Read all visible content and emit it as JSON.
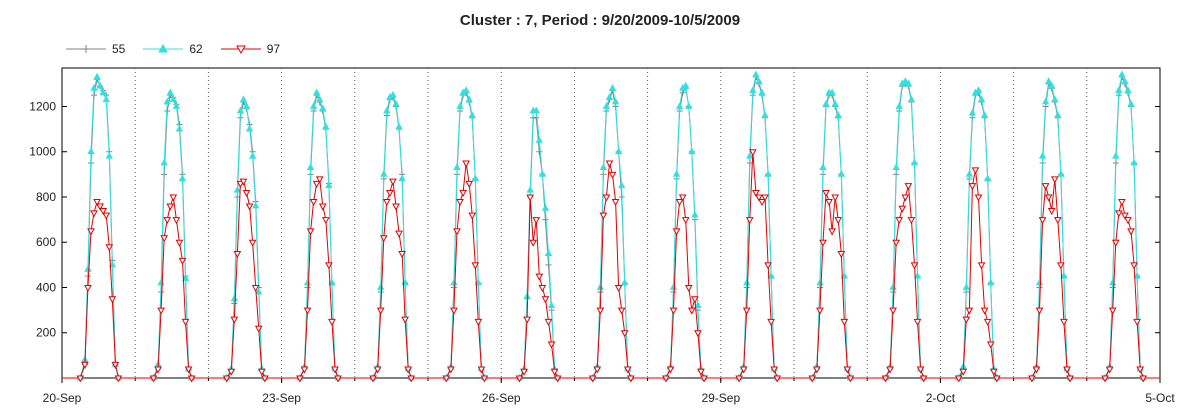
{
  "chart_data": {
    "type": "line",
    "title": "Cluster : 7, Period : 9/20/2009-10/5/2009",
    "x_tick_labels": [
      "20-Sep",
      "23-Sep",
      "26-Sep",
      "29-Sep",
      "2-Oct",
      "5-Oct"
    ],
    "y_tick_labels": [
      "200",
      "400",
      "600",
      "800",
      "1000",
      "1200"
    ],
    "ylim": [
      0,
      1370
    ],
    "x_day_range": [
      0,
      15
    ],
    "grid": "dotted vertical lines at day boundaries",
    "legend_placement": "top-left",
    "series_shape": "daily bell curve starting at about 7:00, peaking near noon, ending about 19:00; values sampled at 7.5, 8.5, 9.5, 10.5, 11.5, 12.5, 13.5, 14.5, 15.5, 16.5, 17.5 hours",
    "series": [
      {
        "name": "55",
        "color": "#808080",
        "marker": "plus",
        "daily_hourly_values": [
          [
            60,
            450,
            950,
            1250,
            1320,
            1290,
            1270,
            1250,
            1000,
            520,
            60
          ],
          [
            40,
            380,
            900,
            1180,
            1250,
            1240,
            1210,
            1120,
            900,
            450,
            40
          ],
          [
            30,
            330,
            800,
            1150,
            1220,
            1190,
            1120,
            1000,
            780,
            400,
            40
          ],
          [
            40,
            400,
            900,
            1180,
            1250,
            1220,
            1180,
            1100,
            860,
            420,
            40
          ],
          [
            40,
            380,
            880,
            1160,
            1230,
            1240,
            1200,
            1100,
            900,
            420,
            40
          ],
          [
            40,
            400,
            900,
            1180,
            1250,
            1260,
            1220,
            1150,
            880,
            420,
            40
          ],
          [
            30,
            350,
            800,
            1150,
            1150,
            1000,
            900,
            700,
            500,
            300,
            40
          ],
          [
            40,
            380,
            900,
            1180,
            1230,
            1270,
            1200,
            1000,
            800,
            420,
            40
          ],
          [
            40,
            380,
            880,
            1180,
            1260,
            1280,
            1200,
            1000,
            700,
            300,
            40
          ],
          [
            40,
            400,
            950,
            1250,
            1330,
            1300,
            1250,
            1150,
            900,
            450,
            40
          ],
          [
            40,
            400,
            900,
            1200,
            1250,
            1250,
            1200,
            1150,
            900,
            450,
            40
          ],
          [
            40,
            380,
            900,
            1180,
            1290,
            1300,
            1290,
            1220,
            950,
            450,
            40
          ],
          [
            40,
            380,
            880,
            1150,
            1250,
            1260,
            1220,
            1150,
            880,
            420,
            40
          ],
          [
            40,
            400,
            950,
            1200,
            1300,
            1280,
            1220,
            1150,
            900,
            450,
            40
          ],
          [
            40,
            400,
            950,
            1250,
            1330,
            1300,
            1260,
            1200,
            950,
            450,
            40
          ]
        ]
      },
      {
        "name": "62",
        "color": "#33e0e0",
        "marker": "triangle-up",
        "daily_hourly_values": [
          [
            80,
            480,
            1000,
            1280,
            1330,
            1290,
            1260,
            1230,
            980,
            500,
            60
          ],
          [
            60,
            420,
            950,
            1220,
            1260,
            1230,
            1200,
            1100,
            880,
            440,
            40
          ],
          [
            40,
            350,
            830,
            1180,
            1230,
            1200,
            1100,
            980,
            760,
            380,
            40
          ],
          [
            50,
            420,
            930,
            1200,
            1260,
            1230,
            1190,
            1110,
            850,
            420,
            40
          ],
          [
            50,
            400,
            900,
            1180,
            1240,
            1250,
            1210,
            1110,
            880,
            420,
            40
          ],
          [
            50,
            420,
            930,
            1200,
            1260,
            1270,
            1230,
            1160,
            880,
            420,
            40
          ],
          [
            40,
            360,
            830,
            1180,
            1180,
            1050,
            900,
            750,
            550,
            320,
            40
          ],
          [
            50,
            400,
            930,
            1200,
            1240,
            1280,
            1220,
            1000,
            850,
            420,
            40
          ],
          [
            50,
            400,
            900,
            1200,
            1280,
            1290,
            1200,
            1000,
            720,
            320,
            40
          ],
          [
            50,
            420,
            980,
            1270,
            1340,
            1310,
            1260,
            1160,
            900,
            450,
            40
          ],
          [
            50,
            420,
            930,
            1210,
            1260,
            1260,
            1210,
            1160,
            900,
            450,
            40
          ],
          [
            50,
            400,
            930,
            1200,
            1300,
            1310,
            1300,
            1230,
            950,
            450,
            40
          ],
          [
            50,
            400,
            900,
            1170,
            1260,
            1270,
            1230,
            1160,
            880,
            420,
            40
          ],
          [
            50,
            420,
            980,
            1220,
            1310,
            1290,
            1230,
            1160,
            900,
            450,
            40
          ],
          [
            50,
            420,
            980,
            1270,
            1340,
            1310,
            1270,
            1210,
            950,
            450,
            40
          ]
        ]
      },
      {
        "name": "97",
        "color": "#e00000",
        "marker": "triangle-down",
        "daily_hourly_values": [
          [
            60,
            400,
            650,
            730,
            780,
            760,
            740,
            720,
            580,
            350,
            60
          ],
          [
            40,
            300,
            620,
            700,
            760,
            800,
            700,
            600,
            520,
            250,
            40
          ],
          [
            30,
            260,
            550,
            860,
            870,
            820,
            760,
            600,
            400,
            220,
            30
          ],
          [
            40,
            300,
            650,
            780,
            860,
            880,
            760,
            700,
            500,
            250,
            40
          ],
          [
            40,
            300,
            620,
            780,
            820,
            870,
            760,
            640,
            550,
            260,
            40
          ],
          [
            40,
            300,
            650,
            780,
            820,
            950,
            860,
            720,
            500,
            250,
            40
          ],
          [
            30,
            260,
            800,
            600,
            700,
            450,
            400,
            350,
            250,
            150,
            30
          ],
          [
            40,
            300,
            720,
            800,
            950,
            900,
            780,
            400,
            300,
            200,
            40
          ],
          [
            40,
            300,
            650,
            780,
            800,
            700,
            400,
            300,
            350,
            200,
            30
          ],
          [
            40,
            300,
            700,
            1000,
            820,
            800,
            780,
            800,
            500,
            250,
            40
          ],
          [
            40,
            300,
            600,
            820,
            780,
            650,
            800,
            700,
            550,
            250,
            40
          ],
          [
            40,
            300,
            600,
            700,
            750,
            800,
            850,
            700,
            500,
            250,
            40
          ],
          [
            30,
            260,
            300,
            850,
            920,
            800,
            500,
            300,
            250,
            150,
            30
          ],
          [
            40,
            300,
            700,
            850,
            800,
            740,
            880,
            700,
            500,
            250,
            40
          ],
          [
            40,
            300,
            600,
            730,
            780,
            720,
            700,
            650,
            500,
            250,
            40
          ]
        ]
      }
    ]
  }
}
